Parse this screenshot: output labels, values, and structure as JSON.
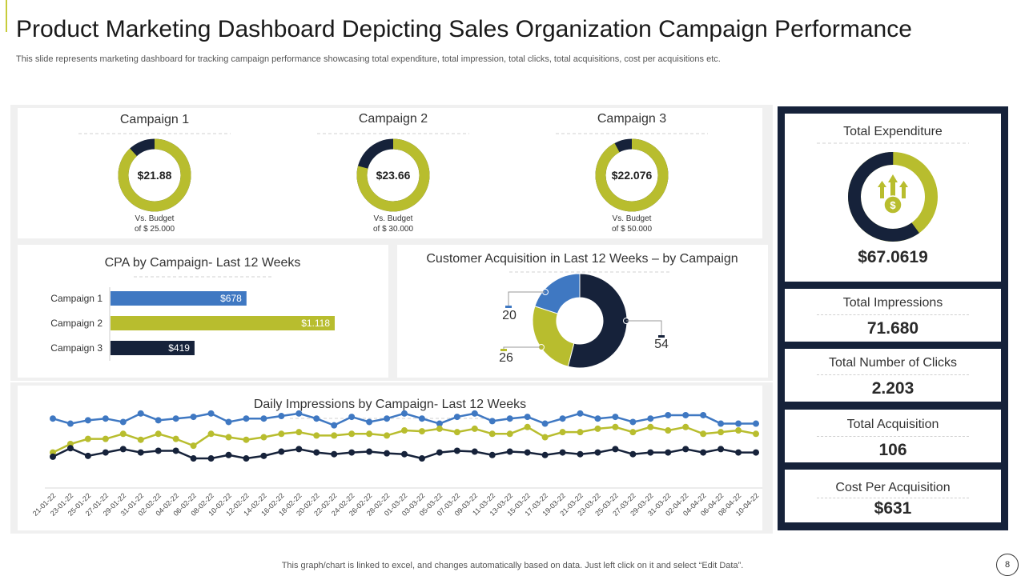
{
  "header": {
    "title": "Product Marketing Dashboard Depicting  Sales Organization Campaign Performance",
    "subtitle": "This slide represents marketing dashboard for tracking campaign performance showcasing total expenditure, total impression, total clicks, total acquisitions, cost per acquisitions etc."
  },
  "campaigns": [
    {
      "name": "Campaign 1",
      "value": "$21.88",
      "note1": "Vs. Budget",
      "note2": "of $ 25.000",
      "progress": 0.88
    },
    {
      "name": "Campaign 2",
      "value": "$23.66",
      "note1": "Vs. Budget",
      "note2": "of $ 30.000",
      "progress": 0.79
    },
    {
      "name": "Campaign 3",
      "value": "$22.076",
      "note1": "Vs. Budget",
      "note2": "of $ 50.000",
      "progress": 0.92
    }
  ],
  "stats": {
    "expenditure": {
      "label": "Total Expenditure",
      "value": "$67.0619",
      "progress": 0.6
    },
    "impressions": {
      "label": "Total Impressions",
      "value": "71.680"
    },
    "clicks": {
      "label": "Total Number of Clicks",
      "value": "2.203"
    },
    "acquisition": {
      "label": "Total Acquisition",
      "value": "106"
    },
    "cpa": {
      "label": "Cost Per Acquisition",
      "value": "$631"
    }
  },
  "colors": {
    "navy": "#16223a",
    "olive": "#b8bd2e",
    "blue": "#3f78c2",
    "track": "#c9cc3a"
  },
  "chart_data": [
    {
      "type": "bar",
      "orientation": "horizontal",
      "title": "CPA by Campaign- Last 12 Weeks",
      "categories": [
        "Campaign 1",
        "Campaign 2",
        "Campaign 3"
      ],
      "values": [
        678,
        1118,
        419
      ],
      "value_labels": [
        "$678",
        "$1.118",
        "$419"
      ],
      "bar_colors": [
        "#3f78c2",
        "#b8bd2e",
        "#16223a"
      ]
    },
    {
      "type": "pie",
      "style": "donut",
      "title": "Customer Acquisition in Last 12 Weeks – by Campaign",
      "slices": [
        {
          "label": "54",
          "value": 54,
          "color": "#16223a"
        },
        {
          "label": "26",
          "value": 26,
          "color": "#b8bd2e"
        },
        {
          "label": "20",
          "value": 20,
          "color": "#3f78c2"
        }
      ]
    },
    {
      "type": "line",
      "title": "Daily Impressions by Campaign- Last 12 Weeks",
      "x": [
        "21-01-22",
        "23-01-22",
        "25-01-22",
        "27-01-22",
        "29-01-22",
        "31-01-22",
        "02-02-22",
        "04-02-22",
        "06-02-22",
        "08-02-22",
        "10-02-22",
        "12-02-22",
        "14-02-22",
        "16-02-22",
        "18-02-22",
        "20-02-22",
        "22-02-22",
        "24-02-22",
        "26-02-22",
        "28-02-22",
        "01-03-22",
        "03-03-22",
        "05-03-22",
        "07-03-22",
        "09-03-22",
        "11-03-22",
        "13-03-22",
        "15-03-22",
        "17-03-22",
        "19-03-22",
        "21-03-22",
        "23-03-22",
        "25-03-22",
        "27-03-22",
        "29-03-22",
        "31-03-22",
        "02-04-22",
        "04-04-22",
        "06-04-22",
        "08-04-22",
        "10-04-22"
      ],
      "ylim": [
        0,
        100
      ],
      "series": [
        {
          "name": "Campaign 1",
          "color": "#3f78c2",
          "values": [
            80,
            74,
            78,
            80,
            76,
            86,
            78,
            80,
            82,
            86,
            76,
            80,
            80,
            83,
            86,
            80,
            72,
            82,
            76,
            80,
            86,
            80,
            74,
            82,
            86,
            77,
            80,
            82,
            74,
            80,
            86,
            80,
            82,
            76,
            80,
            84,
            84,
            84,
            74,
            74,
            74
          ]
        },
        {
          "name": "Campaign 2",
          "color": "#b8bd2e",
          "values": [
            40,
            50,
            56,
            56,
            62,
            55,
            62,
            56,
            48,
            62,
            58,
            55,
            58,
            62,
            64,
            60,
            60,
            62,
            62,
            60,
            66,
            65,
            68,
            64,
            68,
            62,
            62,
            70,
            58,
            64,
            64,
            68,
            70,
            64,
            70,
            66,
            70,
            62,
            64,
            66,
            62
          ]
        },
        {
          "name": "Campaign 3",
          "color": "#16223a",
          "values": [
            35,
            45,
            36,
            40,
            44,
            40,
            42,
            42,
            33,
            33,
            37,
            33,
            36,
            41,
            44,
            40,
            38,
            40,
            41,
            39,
            38,
            33,
            40,
            42,
            41,
            37,
            41,
            40,
            37,
            40,
            38,
            40,
            44,
            38,
            40,
            40,
            44,
            40,
            44,
            40,
            40
          ]
        }
      ]
    }
  ],
  "footer": {
    "note": "This graph/chart is linked to excel,  and changes automatically based on data. Just left click on it and select “Edit Data”.",
    "page": "8"
  }
}
